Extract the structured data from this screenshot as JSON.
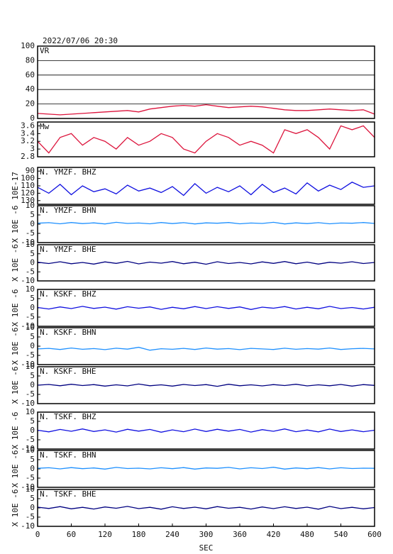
{
  "chart_data": [
    {
      "type": "line",
      "title": "2022/07/06 20:30",
      "label": "VR",
      "color": "#dc143c",
      "grid": true,
      "x": [
        0,
        20,
        40,
        60,
        80,
        100,
        120,
        140,
        160,
        180,
        200,
        220,
        240,
        260,
        280,
        300,
        320,
        340,
        360,
        380,
        400,
        420,
        440,
        460,
        480,
        500,
        520,
        540,
        560,
        580,
        600
      ],
      "values": [
        7,
        6,
        5,
        6,
        7,
        8,
        9,
        10,
        11,
        9,
        13,
        15,
        17,
        18,
        17,
        19,
        17,
        15,
        16,
        17,
        16,
        14,
        12,
        11,
        11,
        12,
        13,
        12,
        11,
        12,
        6
      ],
      "ylim": [
        0,
        100
      ],
      "yticks": [
        0,
        20,
        40,
        60,
        80,
        100
      ]
    },
    {
      "type": "line",
      "label": "Mw",
      "color": "#dc143c",
      "x": [
        0,
        20,
        40,
        60,
        80,
        100,
        120,
        140,
        160,
        180,
        200,
        220,
        240,
        260,
        280,
        300,
        320,
        340,
        360,
        380,
        400,
        420,
        440,
        460,
        480,
        500,
        520,
        540,
        560,
        580,
        600
      ],
      "values": [
        3.2,
        2.9,
        3.3,
        3.4,
        3.1,
        3.3,
        3.2,
        3.0,
        3.3,
        3.1,
        3.2,
        3.4,
        3.3,
        3.0,
        2.9,
        3.2,
        3.4,
        3.3,
        3.1,
        3.2,
        3.1,
        2.9,
        3.5,
        3.4,
        3.5,
        3.3,
        3.0,
        3.6,
        3.5,
        3.6,
        3.3
      ],
      "ylim": [
        2.8,
        3.7
      ],
      "yticks": [
        2.8,
        3.0,
        3.2,
        3.4,
        3.6
      ]
    },
    {
      "type": "line",
      "label": "N. YMZF. BHZ",
      "ylabel": "10E-17",
      "color": "#1010e0",
      "x": [
        0,
        20,
        40,
        60,
        80,
        100,
        120,
        140,
        160,
        180,
        200,
        220,
        240,
        260,
        280,
        300,
        320,
        340,
        360,
        380,
        400,
        420,
        440,
        460,
        480,
        500,
        520,
        540,
        560,
        580,
        600
      ],
      "values": [
        112,
        120,
        108,
        122,
        110,
        118,
        114,
        121,
        109,
        117,
        113,
        119,
        111,
        123,
        107,
        120,
        112,
        118,
        110,
        122,
        108,
        119,
        113,
        121,
        106,
        117,
        109,
        115,
        105,
        112,
        110
      ],
      "ylim": [
        135,
        85
      ],
      "yticks": [
        90,
        100,
        110,
        120,
        130
      ]
    },
    {
      "type": "line",
      "label": "N. YMZF. BHN",
      "ylabel": "X 10E -6",
      "color": "#1e90ff",
      "x": [
        0,
        20,
        40,
        60,
        80,
        100,
        120,
        140,
        160,
        180,
        200,
        220,
        240,
        260,
        280,
        300,
        320,
        340,
        360,
        380,
        400,
        420,
        440,
        460,
        480,
        500,
        520,
        540,
        560,
        580,
        600
      ],
      "values": [
        0.5,
        0.8,
        0.2,
        0.9,
        0.3,
        0.7,
        0.1,
        1.0,
        0.4,
        0.6,
        0.2,
        0.9,
        0.3,
        0.8,
        0.1,
        0.7,
        0.5,
        0.9,
        0.2,
        0.6,
        0.4,
        1.0,
        0.1,
        0.7,
        0.3,
        0.8,
        0.2,
        0.6,
        0.5,
        0.9,
        0.4
      ],
      "ylim": [
        -10,
        10
      ],
      "yticks": [
        -10,
        -5,
        0,
        5,
        10
      ]
    },
    {
      "type": "line",
      "label": "N. YMZF. BHE",
      "ylabel": "X 10E -6",
      "color": "#000080",
      "x": [
        0,
        20,
        40,
        60,
        80,
        100,
        120,
        140,
        160,
        180,
        200,
        220,
        240,
        260,
        280,
        300,
        320,
        340,
        360,
        380,
        400,
        420,
        440,
        460,
        480,
        500,
        520,
        540,
        560,
        580,
        600
      ],
      "values": [
        0.3,
        -0.4,
        0.6,
        -0.5,
        0.2,
        -0.7,
        0.5,
        -0.3,
        0.8,
        -0.6,
        0.4,
        -0.2,
        0.7,
        -0.5,
        0.3,
        -0.8,
        0.6,
        -0.4,
        0.2,
        -0.6,
        0.5,
        -0.3,
        0.7,
        -0.5,
        0.4,
        -0.7,
        0.3,
        -0.2,
        0.6,
        -0.4,
        0.2
      ],
      "ylim": [
        -10,
        10
      ],
      "yticks": [
        -10,
        -5,
        0,
        5,
        10
      ]
    },
    {
      "type": "line",
      "label": "N. KSKF. BHZ",
      "ylabel": "X 10E -6",
      "color": "#1010e0",
      "x": [
        0,
        20,
        40,
        60,
        80,
        100,
        120,
        140,
        160,
        180,
        200,
        220,
        240,
        260,
        280,
        300,
        320,
        340,
        360,
        380,
        400,
        420,
        440,
        460,
        480,
        500,
        520,
        540,
        560,
        580,
        600
      ],
      "values": [
        0.2,
        -0.6,
        0.5,
        -0.4,
        0.8,
        -0.3,
        0.4,
        -0.7,
        0.6,
        -0.2,
        0.5,
        -0.8,
        0.3,
        -0.5,
        0.7,
        -0.4,
        0.6,
        -0.3,
        0.5,
        -0.9,
        0.4,
        -0.2,
        0.7,
        -0.6,
        0.3,
        -0.5,
        0.8,
        -0.4,
        0.2,
        -0.6,
        0.3
      ],
      "ylim": [
        -10,
        10
      ],
      "yticks": [
        -10,
        -5,
        0,
        5,
        10
      ]
    },
    {
      "type": "line",
      "label": "N. KSKF. BHN",
      "ylabel": "X 10E -6",
      "color": "#1e90ff",
      "x": [
        0,
        20,
        40,
        60,
        80,
        100,
        120,
        140,
        160,
        180,
        200,
        220,
        240,
        260,
        280,
        300,
        320,
        340,
        360,
        380,
        400,
        420,
        440,
        460,
        480,
        500,
        520,
        540,
        560,
        580,
        600
      ],
      "values": [
        -1.5,
        -1.2,
        -1.8,
        -1.0,
        -1.7,
        -1.3,
        -1.9,
        -1.1,
        -1.6,
        -0.6,
        -2.2,
        -1.4,
        -1.7,
        -1.2,
        -1.8,
        -1.0,
        -1.6,
        -1.3,
        -1.9,
        -1.2,
        -1.5,
        -1.8,
        -1.1,
        -1.7,
        -1.3,
        -1.6,
        -1.0,
        -1.8,
        -1.4,
        -1.2,
        -1.5
      ],
      "ylim": [
        -10,
        10
      ],
      "yticks": [
        -10,
        -5,
        0,
        5,
        10
      ]
    },
    {
      "type": "line",
      "label": "N. KSKF. BHE",
      "ylabel": "X 10E -6",
      "color": "#000080",
      "x": [
        0,
        20,
        40,
        60,
        80,
        100,
        120,
        140,
        160,
        180,
        200,
        220,
        240,
        260,
        280,
        300,
        320,
        340,
        360,
        380,
        400,
        420,
        440,
        460,
        480,
        500,
        520,
        540,
        560,
        580,
        600
      ],
      "values": [
        0.0,
        0.4,
        -0.3,
        0.5,
        -0.2,
        0.3,
        -0.5,
        0.2,
        -0.4,
        0.6,
        -0.3,
        0.2,
        -0.5,
        0.4,
        -0.2,
        0.3,
        -0.6,
        0.5,
        -0.3,
        0.2,
        -0.4,
        0.3,
        -0.2,
        0.5,
        -0.4,
        0.2,
        -0.3,
        0.4,
        -0.5,
        0.3,
        -0.1
      ],
      "ylim": [
        -10,
        10
      ],
      "yticks": [
        -10,
        -5,
        0,
        5,
        10
      ]
    },
    {
      "type": "line",
      "label": "N. TSKF. BHZ",
      "ylabel": "X 10E -6",
      "color": "#1010e0",
      "x": [
        0,
        20,
        40,
        60,
        80,
        100,
        120,
        140,
        160,
        180,
        200,
        220,
        240,
        260,
        280,
        300,
        320,
        340,
        360,
        380,
        400,
        420,
        440,
        460,
        480,
        500,
        520,
        540,
        560,
        580,
        600
      ],
      "values": [
        0.2,
        -0.7,
        0.6,
        -0.4,
        0.9,
        -0.5,
        0.4,
        -0.8,
        0.7,
        -0.3,
        0.6,
        -0.9,
        0.4,
        -0.6,
        0.8,
        -0.5,
        0.7,
        -0.3,
        0.6,
        -0.8,
        0.5,
        -0.4,
        0.9,
        -0.6,
        0.3,
        -0.7,
        0.8,
        -0.5,
        0.4,
        -0.6,
        0.2
      ],
      "ylim": [
        -10,
        10
      ],
      "yticks": [
        -10,
        -5,
        0,
        5,
        10
      ]
    },
    {
      "type": "line",
      "label": "N. TSKF. BHN",
      "ylabel": "X 10E -6",
      "color": "#1e90ff",
      "x": [
        0,
        20,
        40,
        60,
        80,
        100,
        120,
        140,
        160,
        180,
        200,
        220,
        240,
        260,
        280,
        300,
        320,
        340,
        360,
        380,
        400,
        420,
        440,
        460,
        480,
        500,
        520,
        540,
        560,
        580,
        600
      ],
      "values": [
        0.3,
        0.6,
        0.0,
        0.7,
        0.1,
        0.5,
        -0.1,
        0.8,
        0.2,
        0.4,
        0.0,
        0.6,
        0.1,
        0.7,
        -0.1,
        0.5,
        0.3,
        0.8,
        0.0,
        0.6,
        0.2,
        0.9,
        -0.1,
        0.5,
        0.1,
        0.7,
        0.0,
        0.6,
        0.2,
        0.4,
        0.3
      ],
      "ylim": [
        -10,
        10
      ],
      "yticks": [
        -10,
        -5,
        0,
        5,
        10
      ]
    },
    {
      "type": "line",
      "label": "N. TSKF. BHE",
      "ylabel": "X 10E -6",
      "color": "#000080",
      "xlabel": "SEC",
      "x": [
        0,
        20,
        40,
        60,
        80,
        100,
        120,
        140,
        160,
        180,
        200,
        220,
        240,
        260,
        280,
        300,
        320,
        340,
        360,
        380,
        400,
        420,
        440,
        460,
        480,
        500,
        520,
        540,
        560,
        580,
        600
      ],
      "values": [
        0.4,
        -0.3,
        0.7,
        -0.5,
        0.3,
        -0.6,
        0.5,
        -0.2,
        0.8,
        -0.4,
        0.3,
        -0.7,
        0.6,
        -0.3,
        0.4,
        -0.5,
        0.7,
        -0.2,
        0.3,
        -0.6,
        0.5,
        -0.4,
        0.6,
        -0.3,
        0.4,
        -0.7,
        0.8,
        -0.4,
        0.3,
        -0.5,
        0.2
      ],
      "ylim": [
        -10,
        10
      ],
      "yticks": [
        -10,
        -5,
        0,
        5,
        10
      ],
      "xlim": [
        0,
        600
      ],
      "xticks": [
        0,
        60,
        120,
        180,
        240,
        300,
        360,
        420,
        480,
        540,
        600
      ]
    }
  ]
}
